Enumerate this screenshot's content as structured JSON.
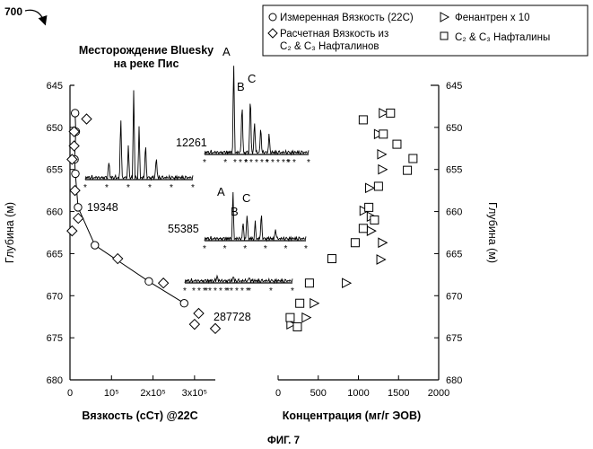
{
  "figure": {
    "ref_number": "700",
    "caption": "ФИГ. 7",
    "title_line1": "Месторождение Bluesky",
    "title_line2": "на реке Пис"
  },
  "legend": {
    "measured": "Измеренная Вязкость (22С)",
    "calculated_line1": "Расчетная Вязкость из",
    "calculated_line2": "С₂ & С₃ Нафталинов",
    "phenanthrene": "Фенантрен x 10",
    "naphthalenes": "С₂ & С₃ Нафталины"
  },
  "chromatograms": {
    "labels": [
      {
        "text": "A"
      },
      {
        "text": "B"
      },
      {
        "text": "C"
      },
      {
        "text": "A"
      },
      {
        "text": "B"
      },
      {
        "text": "C"
      }
    ],
    "sample_ids": [
      "12261",
      "19348",
      "55385",
      "287728"
    ]
  },
  "chart_data": [
    {
      "type": "scatter",
      "xlabel": "Вязкость (сСт) @22С",
      "ylabel": "Глубина (м)",
      "xlim": [
        0,
        350000
      ],
      "ylim": [
        680,
        645
      ],
      "xticks": [
        "0",
        "10⁵",
        "2x10⁵",
        "3x10⁵"
      ],
      "xtick_values": [
        0,
        100000,
        200000,
        300000
      ],
      "yticks": [
        "645",
        "650",
        "655",
        "660",
        "665",
        "670",
        "675",
        "680"
      ],
      "series": [
        {
          "name": "Измеренная Вязкость (22С)",
          "marker": "circle",
          "points": [
            [
              12261,
              648.3
            ],
            [
              14000,
              650.5
            ],
            [
              11000,
              653.8
            ],
            [
              13000,
              655.5
            ],
            [
              19348,
              659.5
            ],
            [
              60000,
              664.0
            ],
            [
              190000,
              668.3
            ],
            [
              275000,
              670.9
            ]
          ]
        },
        {
          "name": "Расчетная Вязкость из С₂ & С₃ Нафталинов",
          "marker": "diamond",
          "points": [
            [
              40000,
              649.0
            ],
            [
              10000,
              650.5
            ],
            [
              10000,
              652.2
            ],
            [
              5000,
              653.8
            ],
            [
              12000,
              657.5
            ],
            [
              20000,
              660.8
            ],
            [
              5000,
              662.3
            ],
            [
              115000,
              665.6
            ],
            [
              225000,
              668.5
            ],
            [
              310000,
              672.1
            ],
            [
              300000,
              673.4
            ],
            [
              350000,
              673.9
            ]
          ]
        }
      ]
    },
    {
      "type": "scatter",
      "xlabel": "Концентрация (мг/г ЭОВ)",
      "ylabel": "Глубина (м)",
      "xlim": [
        0,
        2000
      ],
      "ylim": [
        680,
        645
      ],
      "xticks": [
        "0",
        "500",
        "1000",
        "1500",
        "2000"
      ],
      "yticks": [
        "645",
        "650",
        "655",
        "660",
        "665",
        "670",
        "675",
        "680"
      ],
      "series": [
        {
          "name": "Фенантрен x 10",
          "marker": "triangle",
          "points": [
            [
              1310,
              648.3
            ],
            [
              1250,
              650.8
            ],
            [
              1290,
              653.2
            ],
            [
              1300,
              655.0
            ],
            [
              1140,
              657.2
            ],
            [
              1070,
              659.9
            ],
            [
              1160,
              660.6
            ],
            [
              1160,
              662.3
            ],
            [
              1300,
              663.7
            ],
            [
              1280,
              665.7
            ],
            [
              850,
              668.5
            ],
            [
              450,
              670.9
            ],
            [
              350,
              672.6
            ],
            [
              160,
              673.4
            ]
          ]
        },
        {
          "name": "С₂ & С₃ Нафталины",
          "marker": "square",
          "points": [
            [
              1060,
              649.1
            ],
            [
              1400,
              648.3
            ],
            [
              1310,
              650.8
            ],
            [
              1480,
              652.0
            ],
            [
              1680,
              653.7
            ],
            [
              1610,
              655.1
            ],
            [
              1250,
              657.0
            ],
            [
              1130,
              659.5
            ],
            [
              1200,
              661.0
            ],
            [
              1060,
              662.0
            ],
            [
              960,
              663.7
            ],
            [
              670,
              665.6
            ],
            [
              390,
              668.5
            ],
            [
              270,
              670.9
            ],
            [
              150,
              672.6
            ],
            [
              240,
              673.7
            ]
          ]
        }
      ]
    }
  ]
}
